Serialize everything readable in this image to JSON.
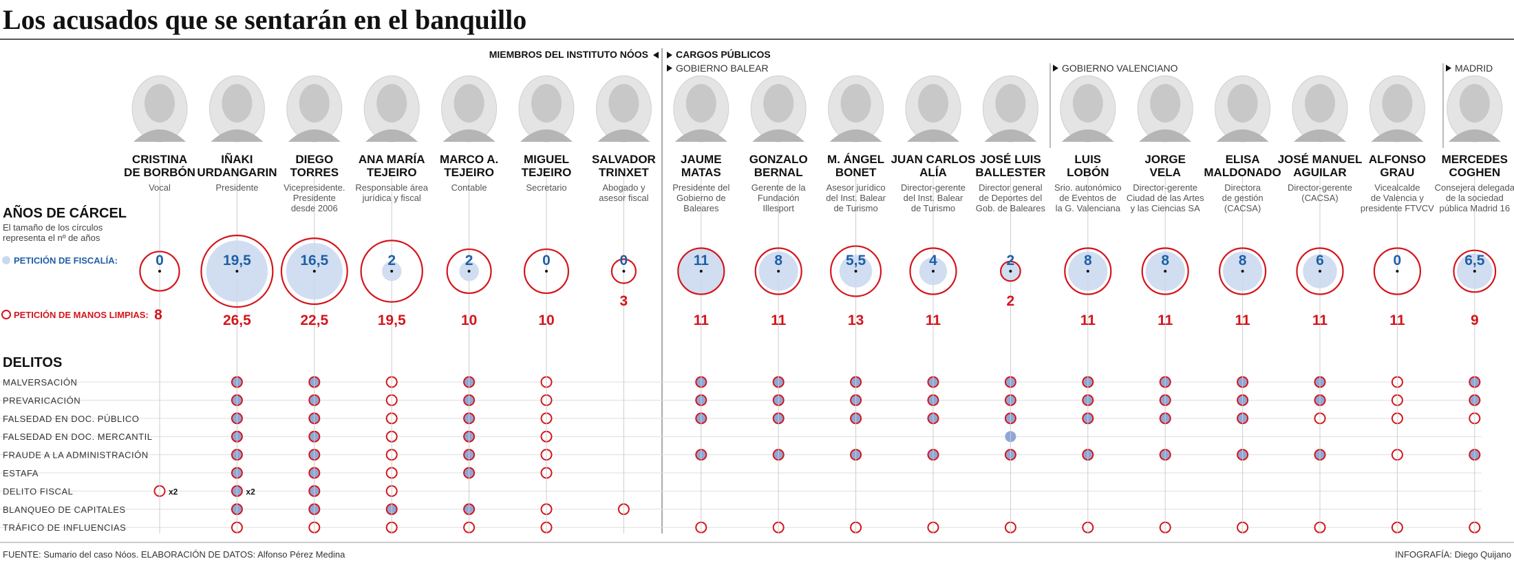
{
  "title": "Los acusados que se sentarán en el banquillo",
  "headers": {
    "instituto": "MIEMBROS DEL INSTITUTO NÓOS",
    "cargos": "CARGOS PÚBLICOS",
    "balear": "GOBIERNO BALEAR",
    "valenciano": "GOBIERNO VALENCIANO",
    "madrid": "MADRID"
  },
  "section_years": {
    "title": "AÑOS DE CÁRCEL",
    "note1": "El tamaño de los círculos",
    "note2": "representa el nº de años",
    "legend_fiscalia": "PETICIÓN DE FISCALÍA:",
    "legend_manos": "PETICIÓN DE MANOS LIMPIAS:"
  },
  "section_crimes_title": "DELITOS",
  "footer": {
    "source": "FUENTE: Sumario del caso Nóos. ELABORACIÓN DE DATOS: Alfonso Pérez Medina",
    "credit": "INFOGRAFÍA: Diego Quijano"
  },
  "colors": {
    "fiscalia": "#c9d8ee",
    "fiscalia_text": "#1f5fa6",
    "manos_limpias": "#d3151b"
  },
  "chart_data": {
    "type": "proportional-circle-matrix",
    "people": [
      {
        "name": [
          "CRISTINA",
          "DE BORBÓN"
        ],
        "role": [
          "Vocal"
        ],
        "fiscalia": "0",
        "manos": "8"
      },
      {
        "name": [
          "IÑAKI",
          "URDANGARIN"
        ],
        "role": [
          "Presidente"
        ],
        "fiscalia": "19,5",
        "manos": "26,5"
      },
      {
        "name": [
          "DIEGO",
          "TORRES"
        ],
        "role": [
          "Vicepresidente.",
          "Presidente",
          "desde 2006"
        ],
        "fiscalia": "16,5",
        "manos": "22,5"
      },
      {
        "name": [
          "ANA MARÍA",
          "TEJEIRO"
        ],
        "role": [
          "Responsable área",
          "jurídica y fiscal"
        ],
        "fiscalia": "2",
        "manos": "19,5"
      },
      {
        "name": [
          "MARCO A.",
          "TEJEIRO"
        ],
        "role": [
          "Contable"
        ],
        "fiscalia": "2",
        "manos": "10"
      },
      {
        "name": [
          "MIGUEL",
          "TEJEIRO"
        ],
        "role": [
          "Secretario"
        ],
        "fiscalia": "0",
        "manos": "10"
      },
      {
        "name": [
          "SALVADOR",
          "TRINXET"
        ],
        "role": [
          "Abogado y",
          "asesor fiscal"
        ],
        "fiscalia": "0",
        "manos": "3"
      },
      {
        "name": [
          "JAUME",
          "MATAS"
        ],
        "role": [
          "Presidente del",
          "Gobierno de",
          "Baleares"
        ],
        "fiscalia": "11",
        "manos": "11"
      },
      {
        "name": [
          "GONZALO",
          "BERNAL"
        ],
        "role": [
          "Gerente de la",
          "Fundación",
          "Illesport"
        ],
        "fiscalia": "8",
        "manos": "11"
      },
      {
        "name": [
          "M. ÁNGEL",
          "BONET"
        ],
        "role": [
          "Asesor jurídico",
          "del Inst. Balear",
          "de Turismo"
        ],
        "fiscalia": "5,5",
        "manos": "13"
      },
      {
        "name": [
          "JUAN CARLOS",
          "ALÍA"
        ],
        "role": [
          "Director-gerente",
          "del Inst. Balear",
          "de Turismo"
        ],
        "fiscalia": "4",
        "manos": "11"
      },
      {
        "name": [
          "JOSÉ LUIS",
          "BALLESTER"
        ],
        "role": [
          "Director general",
          "de Deportes del",
          "Gob. de Baleares"
        ],
        "fiscalia": "2",
        "manos": "2"
      },
      {
        "name": [
          "LUIS",
          "LOBÓN"
        ],
        "role": [
          "Srio. autonómico",
          "de Eventos de",
          "la G. Valenciana"
        ],
        "fiscalia": "8",
        "manos": "11"
      },
      {
        "name": [
          "JORGE",
          "VELA"
        ],
        "role": [
          "Director-gerente",
          "Ciudad de las Artes",
          "y las Ciencias SA"
        ],
        "fiscalia": "8",
        "manos": "11"
      },
      {
        "name": [
          "ELISA",
          "MALDONADO"
        ],
        "role": [
          "Directora",
          "de gestión",
          "(CACSA)"
        ],
        "fiscalia": "8",
        "manos": "11"
      },
      {
        "name": [
          "JOSÉ MANUEL",
          "AGUILAR"
        ],
        "role": [
          "Director-gerente",
          "(CACSA)"
        ],
        "fiscalia": "6",
        "manos": "11"
      },
      {
        "name": [
          "ALFONSO",
          "GRAU"
        ],
        "role": [
          "Vicealcalde",
          "de Valencia y",
          "presidente FTVCV"
        ],
        "fiscalia": "0",
        "manos": "11"
      },
      {
        "name": [
          "MERCEDES",
          "COGHEN"
        ],
        "role": [
          "Consejera delegada",
          "de la sociedad",
          "pública Madrid 16"
        ],
        "fiscalia": "6,5",
        "manos": "9"
      }
    ],
    "crimes": [
      {
        "label": "MALVERSACIÓN",
        "marks": [
          "",
          "b",
          "b",
          "r",
          "b",
          "r",
          "",
          "b",
          "b",
          "b",
          "b",
          "b",
          "b",
          "b",
          "b",
          "b",
          "r",
          "b"
        ]
      },
      {
        "label": "PREVARICACIÓN",
        "marks": [
          "",
          "b",
          "b",
          "r",
          "b",
          "r",
          "",
          "b",
          "b",
          "b",
          "b",
          "b",
          "b",
          "b",
          "b",
          "b",
          "r",
          "b"
        ]
      },
      {
        "label": "FALSEDAD EN DOC. PÚBLICO",
        "marks": [
          "",
          "b",
          "b",
          "r",
          "b",
          "r",
          "",
          "b",
          "b",
          "b",
          "b",
          "b",
          "b",
          "b",
          "b",
          "r",
          "r",
          "r"
        ]
      },
      {
        "label": "FALSEDAD EN DOC. MERCANTIL",
        "marks": [
          "",
          "b",
          "b",
          "r",
          "b",
          "r",
          "",
          "",
          "",
          "",
          "",
          "f",
          "",
          "",
          "",
          "",
          "",
          ""
        ]
      },
      {
        "label": "FRAUDE A LA ADMINISTRACIÓN",
        "marks": [
          "",
          "b",
          "b",
          "r",
          "b",
          "r",
          "",
          "b",
          "b",
          "b",
          "b",
          "b",
          "b",
          "b",
          "b",
          "b",
          "r",
          "b"
        ]
      },
      {
        "label": "ESTAFA",
        "marks": [
          "",
          "b",
          "b",
          "r",
          "b",
          "r",
          "",
          "",
          "",
          "",
          "",
          "",
          "",
          "",
          "",
          "",
          "",
          ""
        ]
      },
      {
        "label": "DELITO FISCAL",
        "marks": [
          "r",
          "b",
          "b",
          "r",
          "",
          "",
          "",
          "",
          "",
          "",
          "",
          "",
          "",
          "",
          "",
          "",
          "",
          ""
        ],
        "multipliers": {
          "0": "x2",
          "1": "x2"
        }
      },
      {
        "label": "BLANQUEO DE CAPITALES",
        "marks": [
          "",
          "b",
          "b",
          "b",
          "b",
          "r",
          "r",
          "",
          "",
          "",
          "",
          "",
          "",
          "",
          "",
          "",
          "",
          ""
        ]
      },
      {
        "label": "TRÁFICO DE INFLUENCIAS",
        "marks": [
          "",
          "r",
          "r",
          "r",
          "r",
          "r",
          "",
          "r",
          "r",
          "r",
          "r",
          "r",
          "r",
          "r",
          "r",
          "r",
          "r",
          "r"
        ]
      }
    ]
  }
}
